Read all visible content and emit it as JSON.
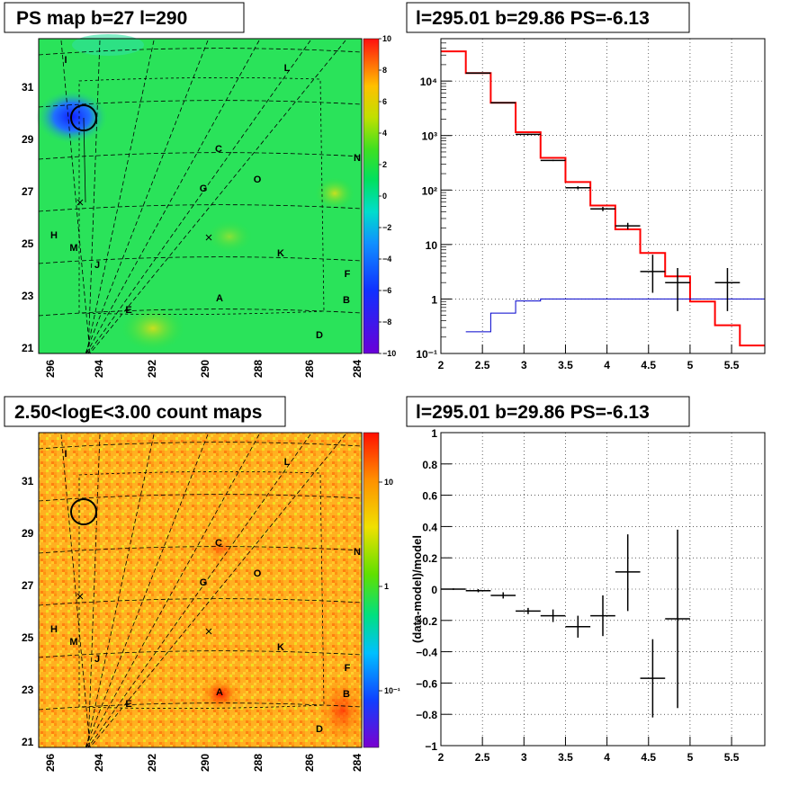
{
  "panels": {
    "ps_map": {
      "title": "PS map b=27 l=290"
    },
    "spectrum": {
      "title": "l=295.01 b=29.86 PS=-6.13"
    },
    "count_map": {
      "title": "2.50<logE<3.00 count maps"
    },
    "residual": {
      "title": "l=295.01 b=29.86 PS=-6.13"
    }
  },
  "maps": {
    "lon_ticks": [
      "296",
      "294",
      "292",
      "290",
      "288",
      "286",
      "284"
    ],
    "lat_ticks": [
      "21",
      "23",
      "25",
      "27",
      "29",
      "31"
    ],
    "region_labels": [
      "I",
      "L",
      "C",
      "N",
      "G",
      "O",
      "H",
      "M",
      "J",
      "K",
      "F",
      "A",
      "B",
      "E",
      "D"
    ],
    "ps_colorbar_ticks": [
      "10",
      "8",
      "6",
      "4",
      "2",
      "0",
      "−2",
      "−4",
      "−6",
      "−8",
      "−10"
    ],
    "count_colorbar_ticks": [
      "10",
      "1",
      "10⁻¹"
    ]
  },
  "colors": {
    "model": "#ff0000",
    "data": "#000000",
    "background_model": "#0000cc"
  },
  "chart_data": [
    {
      "type": "line",
      "title": "l=295.01 b=29.86 PS=-6.13",
      "xlabel": "",
      "ylabel": "",
      "xlim": [
        2,
        5.9
      ],
      "ylim": [
        0.1,
        60000
      ],
      "yscale": "log",
      "grid": true,
      "x_ticks": [
        "2",
        "2.5",
        "3",
        "3.5",
        "4",
        "4.5",
        "5",
        "5.5"
      ],
      "y_ticks": [
        "10⁻¹",
        "1",
        "10",
        "10²",
        "10³",
        "10⁴"
      ],
      "series": [
        {
          "kind": "step",
          "color": "#ff0000",
          "edges": [
            2.0,
            2.3,
            2.6,
            2.9,
            3.2,
            3.5,
            3.8,
            4.1,
            4.4,
            4.7,
            5.0,
            5.3,
            5.6,
            5.9
          ],
          "values": [
            35000,
            14000,
            4000,
            1150,
            390,
            140,
            52,
            19,
            7,
            2.6,
            0.9,
            0.33,
            0.14
          ]
        },
        {
          "kind": "step",
          "color": "#0000cc",
          "edges": [
            2.3,
            2.6,
            2.9,
            3.2,
            3.5,
            3.8,
            4.1,
            4.4,
            4.7,
            5.0,
            5.3,
            5.6,
            5.9
          ],
          "values": [
            0.25,
            0.55,
            0.92,
            1.0,
            1.0,
            1.0,
            1.0,
            1.0,
            1.0,
            1.0,
            1.0,
            1.0
          ]
        },
        {
          "kind": "points",
          "color": "#000000",
          "x": [
            2.45,
            2.75,
            3.05,
            3.35,
            3.65,
            3.95,
            4.25,
            4.55,
            4.85,
            5.45
          ],
          "y": [
            14000,
            4000,
            1050,
            350,
            110,
            45,
            22,
            3.2,
            2.0,
            2.0
          ],
          "ylo": [
            13800,
            3940,
            1020,
            340,
            103,
            41,
            19,
            1.3,
            0.6,
            0.6
          ],
          "yhi": [
            14200,
            4060,
            1080,
            360,
            117,
            49,
            25,
            6.5,
            3.7,
            3.7
          ]
        }
      ]
    },
    {
      "type": "scatter",
      "title": "l=295.01 b=29.86 PS=-6.13",
      "xlabel": "",
      "ylabel": "(data-model)/model",
      "xlim": [
        2,
        5.9
      ],
      "ylim": [
        -1,
        1
      ],
      "grid": true,
      "x_ticks": [
        "2",
        "2.5",
        "3",
        "3.5",
        "4",
        "4.5",
        "5",
        "5.5"
      ],
      "y_ticks": [
        "−1",
        "−0.8",
        "−0.6",
        "−0.4",
        "−0.2",
        "0",
        "0.2",
        "0.4",
        "0.6",
        "0.8",
        "1"
      ],
      "series": [
        {
          "color": "#000000",
          "x": [
            2.15,
            2.45,
            2.75,
            3.05,
            3.35,
            3.65,
            3.95,
            4.25,
            4.55,
            4.85
          ],
          "y": [
            0.0,
            -0.01,
            -0.04,
            -0.14,
            -0.17,
            -0.24,
            -0.17,
            0.11,
            -0.57,
            -0.19
          ],
          "ylo": [
            -0.005,
            -0.02,
            -0.06,
            -0.16,
            -0.21,
            -0.31,
            -0.3,
            -0.14,
            -0.82,
            -0.76
          ],
          "yhi": [
            0.005,
            0.0,
            -0.02,
            -0.12,
            -0.13,
            -0.17,
            -0.04,
            0.35,
            -0.32,
            0.38
          ]
        }
      ]
    }
  ]
}
